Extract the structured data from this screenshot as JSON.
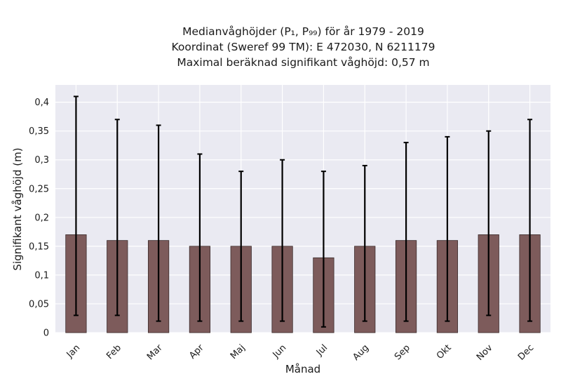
{
  "chart_data": {
    "type": "bar",
    "title_lines": [
      "Medianvåghöjder (P₁, P₉₉) för år 1979 - 2019",
      "Koordinat (Sweref 99 TM): E 472030, N 6211179",
      "Maximal beräknad signifikant våghöjd: 0,57 m"
    ],
    "xlabel": "Månad",
    "ylabel": "Signifikant våghöjd (m)",
    "categories": [
      "Jan",
      "Feb",
      "Mar",
      "Apr",
      "Maj",
      "Jun",
      "Jul",
      "Aug",
      "Sep",
      "Okt",
      "Nov",
      "Dec"
    ],
    "values": [
      0.17,
      0.16,
      0.16,
      0.15,
      0.15,
      0.15,
      0.13,
      0.15,
      0.16,
      0.16,
      0.17,
      0.17
    ],
    "p1": [
      0.03,
      0.03,
      0.02,
      0.02,
      0.02,
      0.02,
      0.01,
      0.02,
      0.02,
      0.02,
      0.03,
      0.02
    ],
    "p99": [
      0.41,
      0.37,
      0.36,
      0.31,
      0.28,
      0.3,
      0.28,
      0.29,
      0.33,
      0.34,
      0.35,
      0.37
    ],
    "yticks": [
      0,
      0.05,
      0.1,
      0.15,
      0.2,
      0.25,
      0.3,
      0.35,
      0.4
    ],
    "ytick_labels": [
      "0",
      "0,05",
      "0,1",
      "0,15",
      "0,2",
      "0,25",
      "0,3",
      "0,35",
      "0,4"
    ],
    "ylim": [
      0,
      0.43
    ],
    "grid": true,
    "colors": {
      "bar": "#7d5b5b",
      "bar_edge": "#3a2a2a",
      "errorbar": "#000000",
      "plot_background": "#eaeaf2",
      "grid": "#ffffff"
    }
  }
}
